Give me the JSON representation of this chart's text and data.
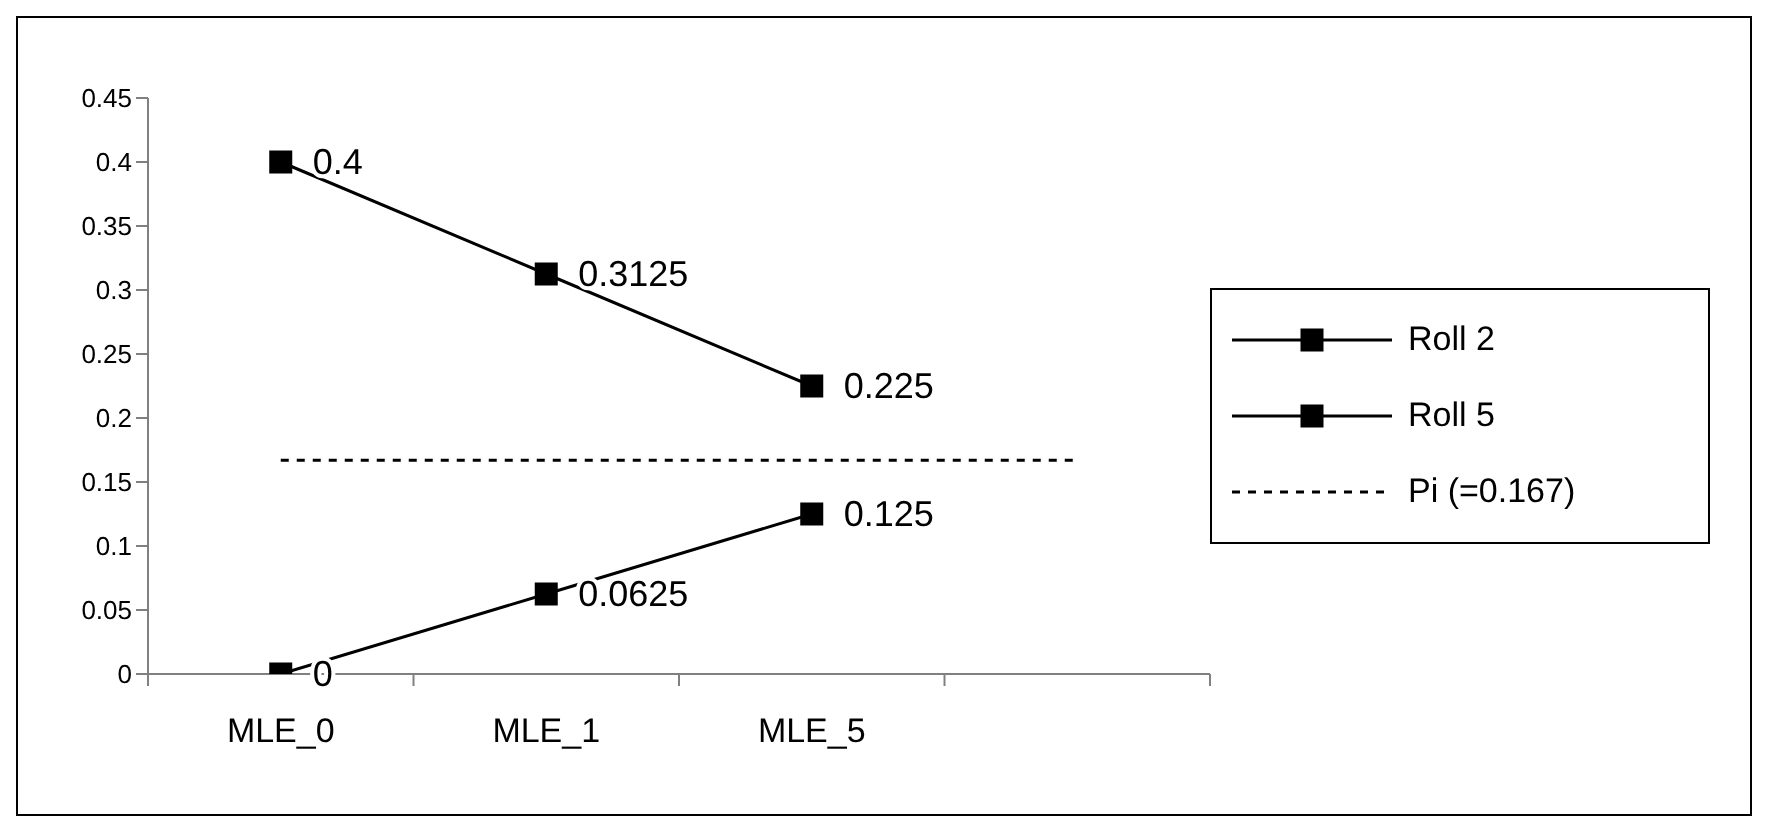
{
  "chart_data": {
    "type": "line",
    "categories": [
      "MLE_0",
      "MLE_1",
      "MLE_5",
      null
    ],
    "series": [
      {
        "name": "Roll 2",
        "color": "#000000",
        "marker": "square",
        "line_style": "solid",
        "values": [
          0.4,
          0.3125,
          0.225,
          null
        ],
        "value_labels": [
          "0.4",
          "0.3125",
          "0.225",
          null
        ]
      },
      {
        "name": "Roll 5",
        "color": "#000000",
        "marker": "square",
        "line_style": "solid",
        "values": [
          0,
          0.0625,
          0.125,
          null
        ],
        "value_labels": [
          "0",
          "0.0625",
          "0.125",
          null
        ]
      },
      {
        "name": "Pi (=0.167)",
        "color": "#000000",
        "marker": "none",
        "line_style": "dotted",
        "values": [
          0.167,
          0.167,
          0.167,
          0.167
        ]
      }
    ],
    "ylim": [
      0,
      0.45
    ],
    "yticks": [
      0,
      0.05,
      0.1,
      0.15,
      0.2,
      0.25,
      0.3,
      0.35,
      0.4,
      0.45
    ],
    "grid": false,
    "legend": "right"
  }
}
